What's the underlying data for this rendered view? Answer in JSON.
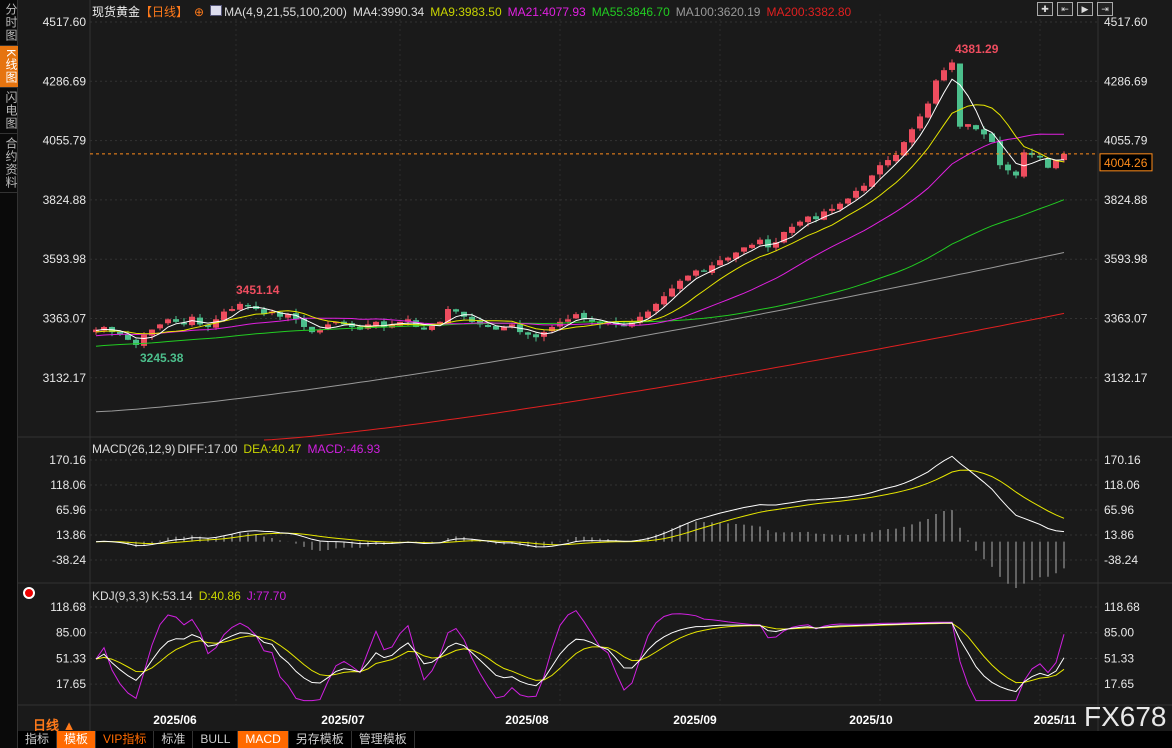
{
  "sidebar": {
    "tabs": [
      {
        "label": "分时图",
        "active": false
      },
      {
        "label": "K线图",
        "active": true
      },
      {
        "label": "闪电图",
        "active": false
      },
      {
        "label": "合约资料",
        "active": false
      }
    ]
  },
  "header": {
    "instrument": "现货黄金",
    "period": "【日线】",
    "ma_label": "MA(4,9,21,55,100,200)",
    "ma4": "MA4:3990.34",
    "ma9": "MA9:3983.50",
    "ma21": "MA21:4077.93",
    "ma55": "MA55:3846.70",
    "ma100": "MA100:3620.19",
    "ma200": "MA200:3382.80"
  },
  "toolbar_icons": [
    "crosshair-icon",
    "step-left-icon",
    "play-icon",
    "jump-end-icon"
  ],
  "colors": {
    "up": "#ee4d5f",
    "down": "#4cbf8c",
    "ma4": "#ffffff",
    "ma9": "#e6e600",
    "ma21": "#e020e0",
    "ma55": "#22cc22",
    "ma100": "#999999",
    "ma200": "#e02020",
    "accent": "#ff8c1a"
  },
  "price_axis": [
    "4517.60",
    "4286.69",
    "4055.79",
    "3824.88",
    "3593.98",
    "3363.07",
    "3132.17"
  ],
  "current_price": "4004.26",
  "annotations": {
    "high": "4381.29",
    "local_high": "3451.14",
    "low": "3245.38"
  },
  "macd": {
    "label": "MACD(26,12,9)",
    "diff": "DIFF:17.00",
    "dea": "DEA:40.47",
    "macd": "MACD:-46.93",
    "axis": [
      "170.16",
      "118.06",
      "65.96",
      "13.86",
      "-38.24"
    ]
  },
  "kdj": {
    "label": "KDJ(9,3,3)",
    "k": "K:53.14",
    "d": "D:40.86",
    "j": "J:77.70",
    "axis": [
      "118.68",
      "85.00",
      "51.33",
      "17.65"
    ]
  },
  "x_axis": {
    "period_label": "日线 ▲",
    "dates": [
      "2025/06",
      "2025/07",
      "2025/08",
      "2025/09",
      "2025/10",
      "2025/11"
    ]
  },
  "bottom_toolbar": [
    {
      "label": "指标",
      "style": "plain"
    },
    {
      "label": "模板",
      "style": "orange"
    },
    {
      "label": "VIP指标",
      "style": "vip"
    },
    {
      "label": "标准",
      "style": "plain"
    },
    {
      "label": "BULL",
      "style": "plain"
    },
    {
      "label": "MACD",
      "style": "orange"
    },
    {
      "label": "另存模板",
      "style": "plain"
    },
    {
      "label": "管理模板",
      "style": "plain"
    }
  ],
  "watermark": "FX678",
  "chart_data": {
    "type": "candlestick",
    "price_range": [
      3132.17,
      4517.6
    ],
    "closes": [
      3320,
      3330,
      3310,
      3300,
      3280,
      3260,
      3300,
      3320,
      3340,
      3360,
      3350,
      3340,
      3370,
      3340,
      3330,
      3360,
      3390,
      3400,
      3420,
      3410,
      3400,
      3380,
      3390,
      3370,
      3380,
      3360,
      3330,
      3310,
      3320,
      3340,
      3350,
      3340,
      3330,
      3320,
      3340,
      3350,
      3330,
      3340,
      3350,
      3360,
      3330,
      3320,
      3340,
      3350,
      3400,
      3390,
      3370,
      3350,
      3340,
      3330,
      3320,
      3330,
      3340,
      3310,
      3300,
      3290,
      3310,
      3330,
      3350,
      3360,
      3380,
      3360,
      3350,
      3340,
      3350,
      3340,
      3335,
      3350,
      3370,
      3390,
      3420,
      3450,
      3480,
      3510,
      3530,
      3550,
      3545,
      3570,
      3590,
      3600,
      3620,
      3640,
      3650,
      3670,
      3640,
      3660,
      3700,
      3720,
      3740,
      3760,
      3750,
      3780,
      3790,
      3810,
      3830,
      3860,
      3880,
      3920,
      3960,
      3980,
      4000,
      4050,
      4100,
      4150,
      4200,
      4290,
      4330,
      4360,
      4110,
      4120,
      4100,
      4080,
      4050,
      3960,
      3940,
      3920,
      4010,
      4000,
      3990,
      3950,
      3980,
      4004.26
    ],
    "ma100": [
      3000,
      3620.19
    ],
    "ma200": [
      2890,
      3382.8
    ]
  }
}
